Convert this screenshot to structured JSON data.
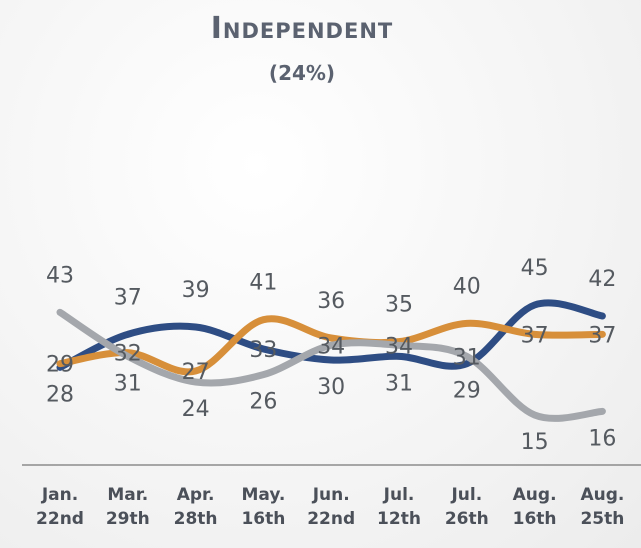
{
  "chart_data": {
    "type": "line",
    "title": "Independent",
    "subtitle": "(24%)",
    "categories": [
      "Jan. 22nd",
      "Mar. 29th",
      "Apr. 28th",
      "May. 16th",
      "Jun. 22nd",
      "Jul. 12th",
      "Jul. 26th",
      "Aug. 16th",
      "Aug. 25th"
    ],
    "series": [
      {
        "color": "#2e4d84",
        "values": [
          28,
          37,
          39,
          33,
          30,
          31,
          29,
          45,
          42
        ]
      },
      {
        "color": "#d78f3a",
        "values": [
          29,
          32,
          27,
          41,
          36,
          35,
          40,
          37,
          37
        ]
      },
      {
        "color": "#a4a7ac",
        "values": [
          43,
          31,
          24,
          26,
          34,
          34,
          31,
          15,
          16
        ]
      }
    ],
    "ylim": [
      0,
      90
    ]
  }
}
